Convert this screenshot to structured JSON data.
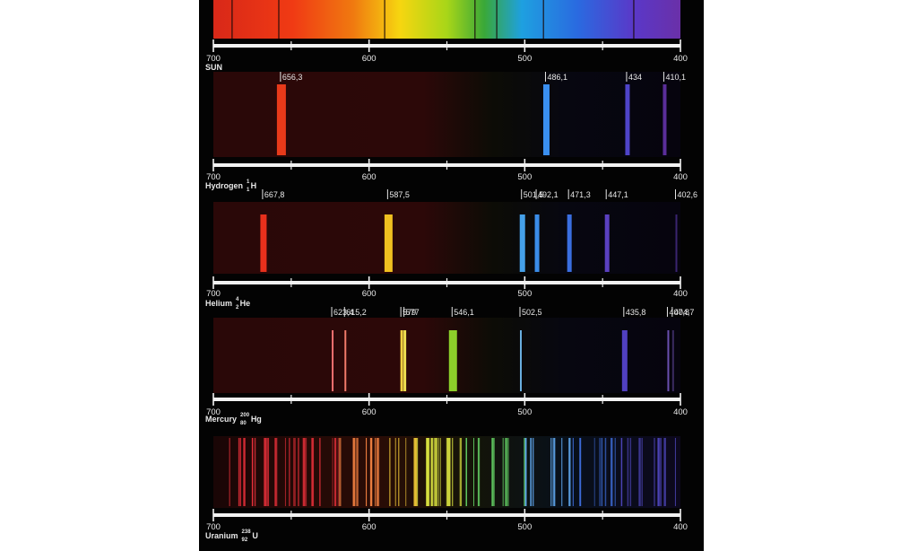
{
  "axis_ticks": [
    "700",
    "600",
    "500",
    "400"
  ],
  "panels": [
    {
      "key": "sun",
      "name": "SUN",
      "mass": "",
      "atomic": "",
      "symbol": "",
      "type": "continuous",
      "absorption_lines_nm": [
        688,
        658,
        590,
        532,
        518,
        488,
        430
      ]
    },
    {
      "key": "hydrogen",
      "name": "Hydrogen",
      "mass": "1",
      "atomic": "1",
      "symbol": "H",
      "type": "emission",
      "lines": [
        {
          "nm": 656.3,
          "label": "656,3",
          "color": "#e83a1a",
          "width": 10
        },
        {
          "nm": 486.1,
          "label": "486,1",
          "color": "#3a8ff0",
          "width": 7
        },
        {
          "nm": 434,
          "label": "434",
          "color": "#4e44c8",
          "width": 5
        },
        {
          "nm": 410.1,
          "label": "410,1",
          "color": "#5a2e9a",
          "width": 4
        }
      ]
    },
    {
      "key": "helium",
      "name": "Helium",
      "mass": "4",
      "atomic": "2",
      "symbol": "He",
      "type": "emission",
      "lines": [
        {
          "nm": 667.8,
          "label": "667,8",
          "color": "#e8301c",
          "width": 7
        },
        {
          "nm": 587.5,
          "label": "587,5",
          "color": "#f0c020",
          "width": 9
        },
        {
          "nm": 501.5,
          "label": "501,5",
          "color": "#45a0e8",
          "width": 6
        },
        {
          "nm": 492.1,
          "label": "492,1",
          "color": "#3a8ce8",
          "width": 5
        },
        {
          "nm": 471.3,
          "label": "471,3",
          "color": "#3a6ee0",
          "width": 5
        },
        {
          "nm": 447.1,
          "label": "447,1",
          "color": "#5a40c0",
          "width": 5
        },
        {
          "nm": 402.6,
          "label": "402,6",
          "color": "#3a2470",
          "width": 2
        }
      ]
    },
    {
      "key": "mercury",
      "name": "Mercury",
      "mass": "200",
      "atomic": "80",
      "symbol": "Hg",
      "type": "emission",
      "lines": [
        {
          "nm": 623.4,
          "label": "623,4",
          "color": "#f07070",
          "width": 2
        },
        {
          "nm": 615.2,
          "label": "615,2",
          "color": "#f07a6a",
          "width": 2
        },
        {
          "nm": 579,
          "label": "579",
          "color": "#f0d040",
          "width": 3
        },
        {
          "nm": 577,
          "label": "577",
          "color": "#f0e050",
          "width": 3
        },
        {
          "nm": 546.1,
          "label": "546,1",
          "color": "#8ccf2a",
          "width": 9
        },
        {
          "nm": 502.5,
          "label": "502,5",
          "color": "#6ab0e0",
          "width": 2
        },
        {
          "nm": 435.8,
          "label": "435,8",
          "color": "#5040c0",
          "width": 6
        },
        {
          "nm": 407.8,
          "label": "407,8",
          "color": "#6a50b0",
          "width": 2
        },
        {
          "nm": 404.7,
          "label": "404,7",
          "color": "#3a2a60",
          "width": 2
        }
      ]
    },
    {
      "key": "uranium",
      "name": "Uranium",
      "mass": "238",
      "atomic": "92",
      "symbol": "U",
      "type": "emission",
      "lines": []
    }
  ]
}
